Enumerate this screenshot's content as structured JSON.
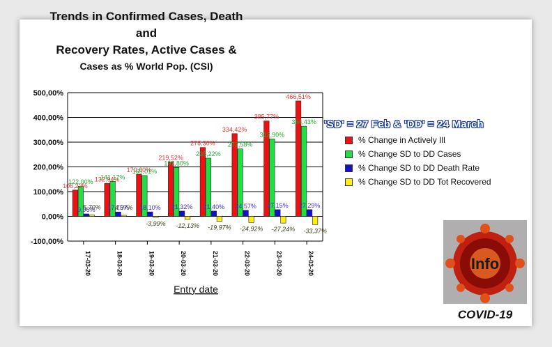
{
  "title_lines": [
    "Trends in Confirmed Cases, Death and",
    "Recovery Rates, Active Cases &",
    "Cases as % World Pop. (CSI)"
  ],
  "legend_note": "'SD' = 27 Feb & 'DD' = 24 March",
  "logo_caption": "COVID-19",
  "logo_text": "Info",
  "colors": {
    "actively_ill": "#ee1111",
    "cases": "#22dd44",
    "death_rate": "#1111cc",
    "recovered": "#ffee11"
  },
  "chart_data": {
    "type": "bar",
    "xlabel": "Entry date",
    "ylabel": "",
    "ylim": [
      -100,
      500
    ],
    "yticks": [
      "-100,00%",
      "0,00%",
      "100,00%",
      "200,00%",
      "300,00%",
      "400,00%",
      "500,00%"
    ],
    "grid": true,
    "legend_position": "right",
    "categories": [
      "17-03-20",
      "18-03-20",
      "19-03-20",
      "20-03-20",
      "21-03-20",
      "22-03-20",
      "23-03-20",
      "24-03-20"
    ],
    "series": [
      {
        "name": "% Change in Actively Ill",
        "values": [
          106.22,
          132.94,
          170.0,
          219.52,
          278.3,
          334.42,
          385.77,
          466.51
        ],
        "labels": [
          "106,22%",
          "132,94%",
          "170,00%",
          "219,52%",
          "278,30%",
          "334,42%",
          "385,77%",
          "466,51%"
        ]
      },
      {
        "name": "% Change SD to DD Cases",
        "values": [
          122.0,
          141.17,
          165.01,
          197.8,
          235.22,
          272.58,
          312.9,
          364.43
        ],
        "labels": [
          "122,00%",
          "141,17%",
          "165,01%",
          "197,80%",
          "235,22%",
          "272,58%",
          "312,90%",
          "364,43%"
        ]
      },
      {
        "name": "% Change SD to DD Death Rate",
        "values": [
          9.96,
          17.75,
          18.1,
          21.32,
          21.4,
          24.57,
          27.15,
          27.29
        ],
        "labels": [
          "9,96%",
          "17,75%",
          "18,10%",
          "21,32%",
          "21,40%",
          "24,57%",
          "27,15%",
          "27,29%"
        ]
      },
      {
        "name": "% Change SD to DD Tot Recovered",
        "values": [
          5.7,
          4.37,
          -3.99,
          -12.13,
          -19.97,
          -24.92,
          -27.24,
          -33.37
        ],
        "labels": [
          "5,70%",
          "4,37%",
          "-3,99%",
          "-12,13%",
          "-19,97%",
          "-24,92%",
          "-27,24%",
          "-33,37%"
        ]
      }
    ]
  }
}
